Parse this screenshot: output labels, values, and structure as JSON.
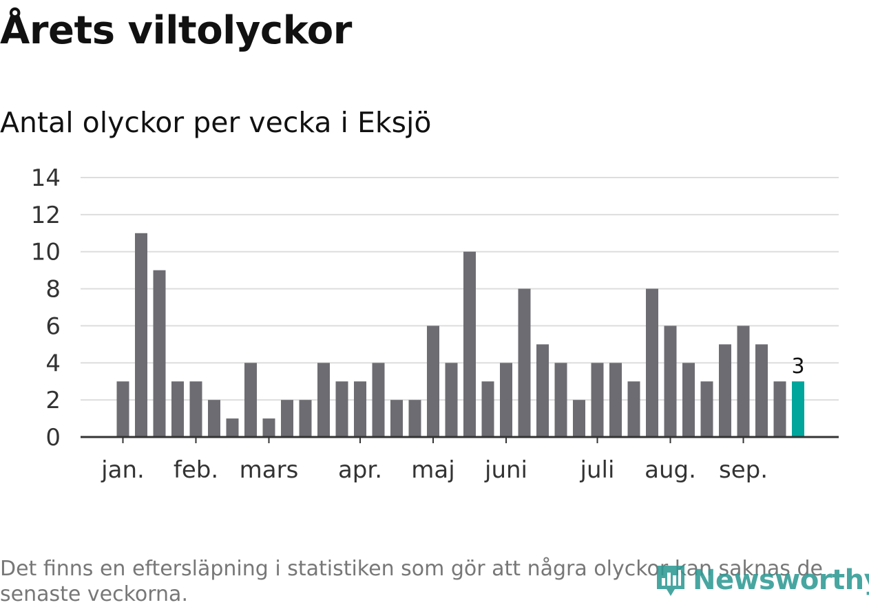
{
  "title": "Årets viltolyckor",
  "subtitle": "Antal olyckor per vecka i Eksjö",
  "note": "Det finns en eftersläpning i statistiken som gör att några olyckor kan saknas de senaste veckorna.",
  "logo": {
    "text": "Newsworthy",
    "icon": "newsworthy-logo-icon"
  },
  "colors": {
    "bar": "#6d6c72",
    "highlight": "#00a59b",
    "grid": "#dddddd",
    "axis": "#333333",
    "logo": "#2f9a95"
  },
  "chart_data": {
    "type": "bar",
    "title": "Antal olyckor per vecka i Eksjö",
    "xlabel": "",
    "ylabel": "",
    "ylim": [
      0,
      14
    ],
    "yticks": [
      0,
      2,
      4,
      6,
      8,
      10,
      12,
      14
    ],
    "grid": true,
    "weeks": [
      1,
      2,
      3,
      4,
      5,
      6,
      7,
      8,
      9,
      10,
      11,
      12,
      13,
      14,
      15,
      16,
      17,
      18,
      19,
      20,
      21,
      22,
      23,
      24,
      25,
      26,
      27,
      28,
      29,
      30,
      31,
      32,
      33,
      34,
      35,
      36,
      37,
      38
    ],
    "values": [
      3,
      11,
      9,
      3,
      3,
      2,
      1,
      4,
      1,
      2,
      2,
      4,
      3,
      3,
      4,
      2,
      2,
      6,
      4,
      10,
      3,
      4,
      8,
      5,
      4,
      2,
      4,
      4,
      3,
      8,
      6,
      4,
      3,
      5,
      6,
      5,
      3,
      3
    ],
    "highlight_index": 37,
    "highlight_label": "3",
    "month_labels": [
      {
        "label": "jan.",
        "week": 1
      },
      {
        "label": "feb.",
        "week": 5
      },
      {
        "label": "mars",
        "week": 9
      },
      {
        "label": "apr.",
        "week": 14
      },
      {
        "label": "maj",
        "week": 18
      },
      {
        "label": "juni",
        "week": 22
      },
      {
        "label": "juli",
        "week": 27
      },
      {
        "label": "aug.",
        "week": 31
      },
      {
        "label": "sep.",
        "week": 35
      }
    ]
  }
}
